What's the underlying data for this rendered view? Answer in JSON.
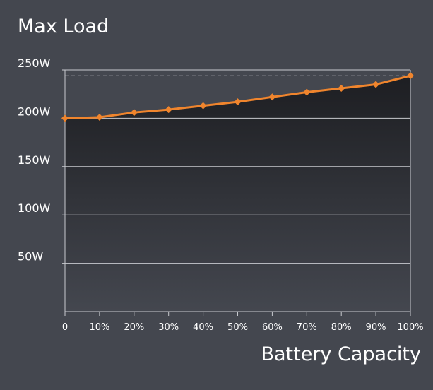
{
  "title": "Max Load",
  "chart_data": {
    "type": "area",
    "title": "Max Load",
    "xlabel": "Battery Capacity",
    "ylabel": "",
    "categories": [
      "0",
      "10%",
      "20%",
      "30%",
      "40%",
      "50%",
      "60%",
      "70%",
      "80%",
      "90%",
      "100%"
    ],
    "series": [
      {
        "values": [
          200,
          201,
          206,
          209,
          213,
          217,
          222,
          227,
          231,
          235,
          244
        ]
      }
    ],
    "y_ticks": [
      {
        "value": 50,
        "label": "50W"
      },
      {
        "value": 100,
        "label": "100W"
      },
      {
        "value": 150,
        "label": "150W"
      },
      {
        "value": 200,
        "label": "200W"
      },
      {
        "value": 250,
        "label": "250W"
      }
    ],
    "ylim": [
      0,
      250
    ],
    "max_reference_line": 244,
    "grid": true,
    "colors": {
      "background": "#44474f",
      "line": "#f0852d",
      "grid": "#c8cacf",
      "reference_line": "#b4b6ba",
      "area_top": "#1d1e22"
    }
  }
}
